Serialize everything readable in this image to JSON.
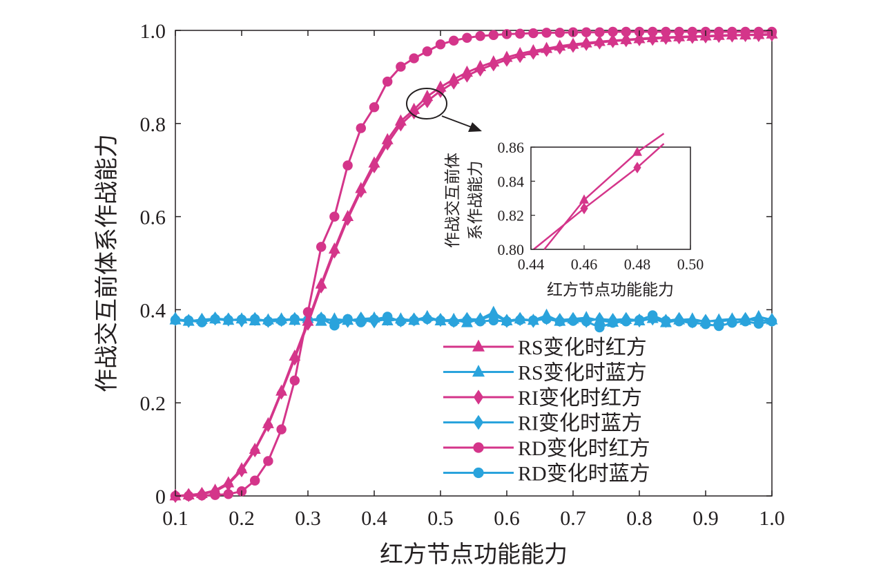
{
  "chart_data": [
    {
      "type": "line",
      "title": "",
      "xlabel": "红方节点功能能力",
      "ylabel": "作战交互前体系作战能力",
      "xlim": [
        0.1,
        1.0
      ],
      "ylim": [
        0,
        1.0
      ],
      "xticks": [
        "0.1",
        "0.2",
        "0.3",
        "0.4",
        "0.5",
        "0.6",
        "0.7",
        "0.8",
        "0.9",
        "1.0"
      ],
      "yticks": [
        "0",
        "0.2",
        "0.4",
        "0.6",
        "0.8",
        "1.0"
      ],
      "grid": false,
      "legend_position": "center-right",
      "colors": {
        "red_side": "#d4358a",
        "blue_side": "#2aa3dc",
        "axis": "#231f20"
      },
      "x": [
        0.1,
        0.12,
        0.14,
        0.16,
        0.18,
        0.2,
        0.22,
        0.24,
        0.26,
        0.28,
        0.3,
        0.32,
        0.34,
        0.36,
        0.38,
        0.4,
        0.42,
        0.44,
        0.46,
        0.48,
        0.5,
        0.52,
        0.54,
        0.56,
        0.58,
        0.6,
        0.62,
        0.64,
        0.66,
        0.68,
        0.7,
        0.72,
        0.74,
        0.76,
        0.78,
        0.8,
        0.82,
        0.84,
        0.86,
        0.88,
        0.9,
        0.92,
        0.94,
        0.96,
        0.98,
        1.0
      ],
      "series": [
        {
          "name": "RS变化时红方",
          "marker": "triangle",
          "color": "#d4358a",
          "values": [
            0.0,
            0.002,
            0.005,
            0.012,
            0.028,
            0.058,
            0.1,
            0.155,
            0.225,
            0.3,
            0.375,
            0.455,
            0.53,
            0.6,
            0.66,
            0.715,
            0.765,
            0.805,
            0.83,
            0.858,
            0.878,
            0.895,
            0.91,
            0.922,
            0.932,
            0.942,
            0.95,
            0.956,
            0.961,
            0.966,
            0.97,
            0.973,
            0.976,
            0.978,
            0.98,
            0.982,
            0.984,
            0.985,
            0.986,
            0.987,
            0.988,
            0.989,
            0.99,
            0.99,
            0.991,
            0.992
          ]
        },
        {
          "name": "RS变化时蓝方",
          "marker": "triangle",
          "color": "#2aa3dc",
          "values": [
            0.378,
            0.375,
            0.379,
            0.38,
            0.377,
            0.38,
            0.376,
            0.378,
            0.38,
            0.377,
            0.381,
            0.375,
            0.38,
            0.377,
            0.38,
            0.382,
            0.376,
            0.38,
            0.377,
            0.385,
            0.376,
            0.379,
            0.372,
            0.38,
            0.394,
            0.376,
            0.38,
            0.377,
            0.388,
            0.375,
            0.38,
            0.383,
            0.377,
            0.373,
            0.379,
            0.376,
            0.381,
            0.372,
            0.378,
            0.38,
            0.374,
            0.378,
            0.38,
            0.377,
            0.385,
            0.378
          ]
        },
        {
          "name": "RI变化时红方",
          "marker": "diamond",
          "color": "#d4358a",
          "values": [
            0.0,
            0.002,
            0.004,
            0.01,
            0.025,
            0.055,
            0.098,
            0.152,
            0.222,
            0.295,
            0.37,
            0.45,
            0.525,
            0.595,
            0.655,
            0.708,
            0.757,
            0.798,
            0.824,
            0.848,
            0.87,
            0.888,
            0.903,
            0.916,
            0.927,
            0.937,
            0.945,
            0.952,
            0.958,
            0.963,
            0.967,
            0.971,
            0.974,
            0.977,
            0.979,
            0.981,
            0.982,
            0.984,
            0.985,
            0.986,
            0.987,
            0.988,
            0.989,
            0.99,
            0.99,
            0.991
          ]
        },
        {
          "name": "RI变化时蓝方",
          "marker": "diamond",
          "color": "#2aa3dc",
          "values": [
            0.38,
            0.376,
            0.378,
            0.381,
            0.379,
            0.377,
            0.38,
            0.376,
            0.378,
            0.38,
            0.376,
            0.381,
            0.377,
            0.376,
            0.381,
            0.375,
            0.38,
            0.377,
            0.379,
            0.382,
            0.378,
            0.376,
            0.38,
            0.379,
            0.388,
            0.376,
            0.38,
            0.376,
            0.382,
            0.378,
            0.38,
            0.376,
            0.38,
            0.378,
            0.38,
            0.377,
            0.381,
            0.376,
            0.38,
            0.375,
            0.376,
            0.375,
            0.378,
            0.38,
            0.376,
            0.378
          ]
        },
        {
          "name": "RD变化时红方",
          "marker": "circle",
          "color": "#d4358a",
          "values": [
            0.0,
            0.0,
            0.001,
            0.002,
            0.004,
            0.01,
            0.033,
            0.075,
            0.143,
            0.248,
            0.395,
            0.535,
            0.6,
            0.71,
            0.79,
            0.835,
            0.89,
            0.922,
            0.94,
            0.955,
            0.97,
            0.978,
            0.984,
            0.988,
            0.99,
            0.992,
            0.993,
            0.994,
            0.995,
            0.995,
            0.996,
            0.996,
            0.996,
            0.997,
            0.997,
            0.997,
            0.997,
            0.997,
            0.997,
            0.997,
            0.997,
            0.997,
            0.997,
            0.997,
            0.997,
            0.997
          ]
        },
        {
          "name": "RD变化时蓝方",
          "marker": "circle",
          "color": "#2aa3dc",
          "values": [
            0.378,
            0.377,
            0.373,
            0.38,
            0.378,
            0.379,
            0.38,
            0.375,
            0.376,
            0.38,
            0.378,
            0.381,
            0.366,
            0.38,
            0.373,
            0.379,
            0.385,
            0.375,
            0.377,
            0.38,
            0.377,
            0.374,
            0.377,
            0.375,
            0.377,
            0.375,
            0.378,
            0.377,
            0.38,
            0.375,
            0.376,
            0.375,
            0.362,
            0.372,
            0.375,
            0.378,
            0.388,
            0.376,
            0.375,
            0.372,
            0.369,
            0.365,
            0.372,
            0.375,
            0.37,
            0.375
          ]
        }
      ]
    },
    {
      "type": "line",
      "title": "",
      "xlabel": "红方节点功能能力",
      "ylabel": "作战交互前体系作战能力",
      "xlim": [
        0.44,
        0.5
      ],
      "ylim": [
        0.8,
        0.86
      ],
      "xticks": [
        "0.44",
        "0.46",
        "0.48",
        "0.50"
      ],
      "yticks": [
        "0.80",
        "0.82",
        "0.84",
        "0.86"
      ],
      "grid": false,
      "zoom_of": "main chart, x 0.46–0.48 region",
      "series": [
        {
          "name": "RS变化时红方",
          "marker": "triangle",
          "color": "#d4358a",
          "x": [
            0.46,
            0.48
          ],
          "values": [
            0.829,
            0.857
          ],
          "line_to": [
            0.49,
            0.868
          ],
          "line_from": [
            0.445,
            0.8
          ]
        },
        {
          "name": "RI变化时红方",
          "marker": "diamond",
          "color": "#d4358a",
          "x": [
            0.46,
            0.48
          ],
          "values": [
            0.824,
            0.848
          ],
          "line_to": [
            0.49,
            0.862
          ],
          "line_from": [
            0.441,
            0.8
          ]
        }
      ]
    }
  ]
}
